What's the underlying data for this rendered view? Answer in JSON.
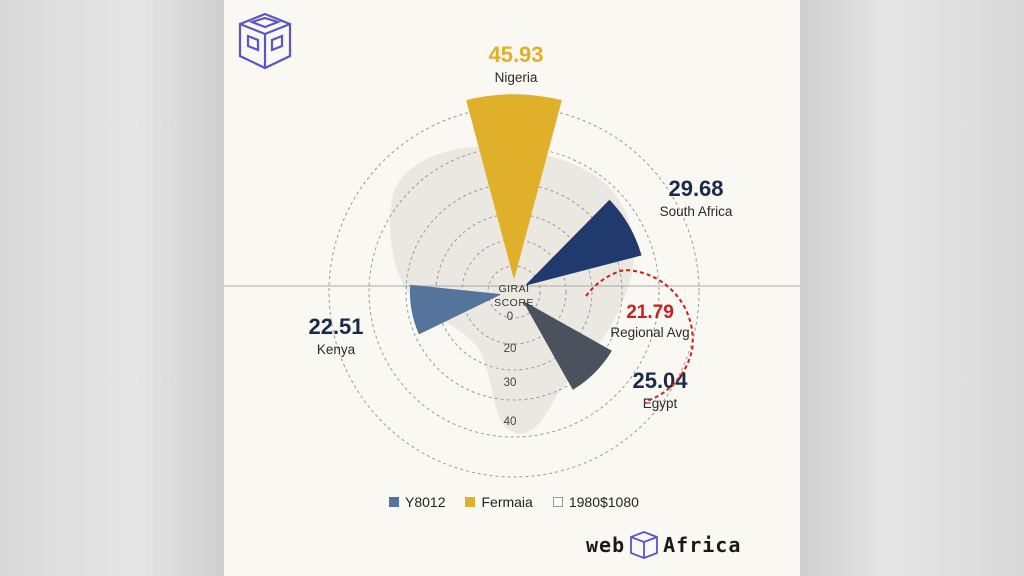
{
  "colors": {
    "nigeria": "#e0b02a",
    "south_africa": "#203a6e",
    "kenya": "#54749c",
    "egypt": "#4a525e",
    "regional": "#cc1f1f",
    "text_dark": "#1c2a4a"
  },
  "chart_data": {
    "type": "polar-bar",
    "center_label": "GIRAI\nSCORE",
    "radial_ticks": [
      "0",
      "20",
      "30",
      "40"
    ],
    "bars": [
      {
        "name": "Nigeria",
        "value": 45.93,
        "value_label": "45.93",
        "color": "#e0b02a",
        "angle_deg": 0
      },
      {
        "name": "South Africa",
        "value": 29.68,
        "value_label": "29.68",
        "color": "#203a6e",
        "angle_deg": 60
      },
      {
        "name": "Egypt",
        "value": 25.04,
        "value_label": "25.04",
        "color": "#4a525e",
        "angle_deg": 135
      },
      {
        "name": "Kenya",
        "value": 22.51,
        "value_label": "22.51",
        "color": "#54749c",
        "angle_deg": 260
      }
    ],
    "reference": {
      "name": "Regional Avg",
      "value": 21.79,
      "value_label": "21.79"
    },
    "legend": [
      {
        "label": "Y8012",
        "color": "#54749c"
      },
      {
        "label": "Fermaia",
        "color": "#e0b02a"
      },
      {
        "label": "1980$1080",
        "color": "#ffffff"
      }
    ]
  },
  "brand": {
    "left": "web",
    "right": "Africa"
  }
}
